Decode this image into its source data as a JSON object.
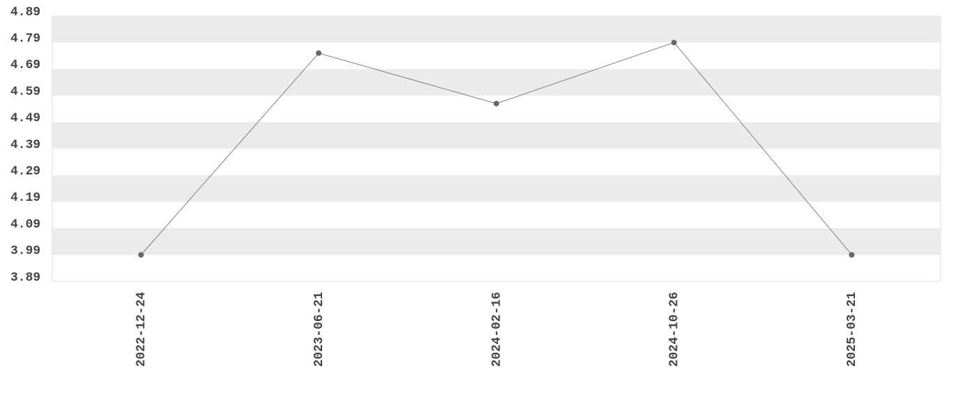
{
  "chart_data": {
    "type": "line",
    "categories": [
      "2022-12-24",
      "2023-06-21",
      "2024-02-16",
      "2024-10-26",
      "2025-03-21"
    ],
    "values": [
      3.99,
      4.75,
      4.56,
      4.79,
      3.99
    ],
    "color": "#666666",
    "ylim": [
      3.89,
      4.89
    ],
    "yticks": [
      3.89,
      3.99,
      4.09,
      4.19,
      4.29,
      4.39,
      4.49,
      4.59,
      4.69,
      4.79,
      4.89
    ],
    "grid": "bands"
  }
}
